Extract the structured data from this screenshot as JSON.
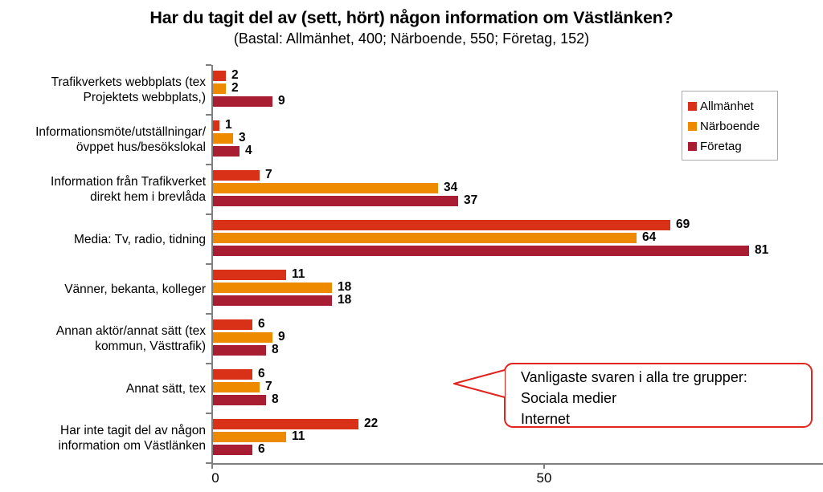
{
  "chart": {
    "title": "Har du tagit del av (sett, hört) någon information om Västlänken?",
    "subtitle": "(Bastal: Allmänhet, 400; Närboende, 550; Företag, 152)"
  },
  "chart_data": {
    "type": "bar",
    "orientation": "horizontal",
    "title": "Har du tagit del av (sett, hört) någon information om Västlänken?",
    "xlabel": "",
    "ylabel": "",
    "xlim": [
      0,
      93
    ],
    "xticks": [
      0,
      50
    ],
    "grid": false,
    "legend_position": "upper-right",
    "categories": [
      "Trafikverkets webbplats (tex\nProjektets webbplats,)",
      "Informationsmöte/utställningar/\növppet hus/besökslokal",
      "Information från Trafikverket\ndirekt hem i brevlåda",
      "Media: Tv, radio, tidning",
      "Vänner, bekanta, kolleger",
      "Annan aktör/annat sätt (tex\nkommun, Västtrafik)",
      "Annat sätt, tex",
      "Har inte tagit del av någon\ninformation om Västlänken"
    ],
    "series": [
      {
        "name": "Allmänhet",
        "color": "#d93117",
        "values": [
          2,
          1,
          7,
          69,
          11,
          6,
          6,
          22
        ]
      },
      {
        "name": "Närboende",
        "color": "#ee8a00",
        "values": [
          2,
          3,
          34,
          64,
          18,
          9,
          7,
          11
        ]
      },
      {
        "name": "Företag",
        "color": "#a81d32",
        "values": [
          9,
          4,
          37,
          81,
          18,
          8,
          8,
          6
        ]
      }
    ]
  },
  "axis": {
    "tick_labels": [
      "0",
      "50"
    ],
    "color": "#7f7f7f"
  },
  "callout": {
    "border_color": "#e0241e",
    "lines": [
      "Vanligaste svaren i alla tre grupper:",
      "Sociala medier",
      "Internet"
    ]
  }
}
